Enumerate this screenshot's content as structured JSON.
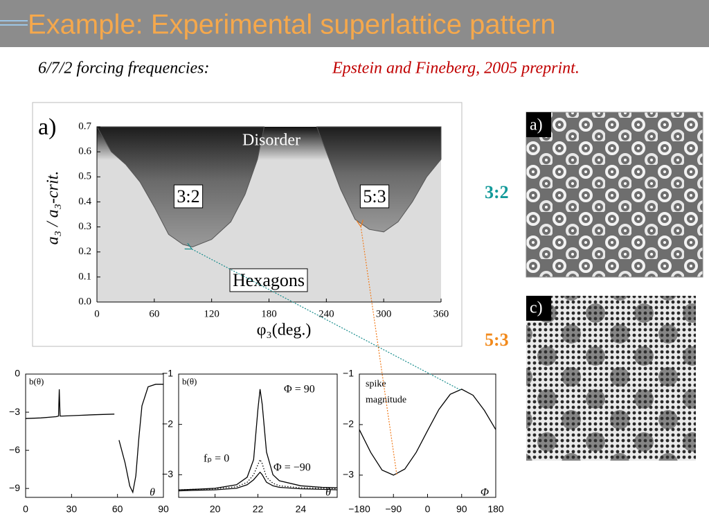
{
  "title": "Example: Experimental superlattice pattern",
  "subtitle": "6/7/2 forcing frequencies:",
  "citation": "Epstein and Fineberg, 2005 preprint.",
  "images": [
    {
      "label": "a)",
      "ratio": "3:2"
    },
    {
      "label": "c)",
      "ratio": "5:3"
    }
  ],
  "chart_data": [
    {
      "type": "area",
      "panel": "a)",
      "ylabel": "a₃ / a₃-crit.",
      "xlabel": "φ₃(deg.)",
      "annotations": [
        "Disorder",
        "3:2",
        "5:3",
        "Hexagons"
      ],
      "xlim": [
        0,
        360
      ],
      "xticks": [
        0,
        60,
        120,
        180,
        240,
        300,
        360
      ],
      "ylim": [
        0,
        0.7
      ],
      "yticks": [
        {
          "value": 0,
          "label": "0.0"
        },
        0.1,
        0.2,
        0.3,
        0.4,
        0.5,
        0.6,
        0.7
      ],
      "series": [
        {
          "color": "#555555",
          "x": [
            0,
            15,
            30,
            45,
            60,
            75,
            90,
            100,
            120,
            140,
            155,
            168,
            175
          ],
          "values": [
            0.7,
            0.6,
            0.55,
            0.48,
            0.38,
            0.27,
            0.23,
            0.22,
            0.25,
            0.32,
            0.43,
            0.57,
            0.7
          ]
        },
        {
          "color": "#555555",
          "x": [
            230,
            240,
            255,
            270,
            285,
            300,
            315,
            330,
            345,
            360
          ],
          "values": [
            0.7,
            0.6,
            0.45,
            0.33,
            0.29,
            0.28,
            0.32,
            0.4,
            0.5,
            0.57
          ]
        }
      ]
    },
    {
      "type": "line",
      "annotations": [
        "b(θ)"
      ],
      "xlabel": "θ",
      "xlim": [
        0,
        90
      ],
      "xticks": [
        0,
        30,
        60,
        90
      ],
      "ylim": [
        -9.7,
        0
      ],
      "yticks": [
        0,
        {
          "value": -3,
          "label": "−3"
        },
        {
          "value": -6,
          "label": "−6"
        },
        {
          "value": -9,
          "label": "−9"
        }
      ],
      "series": [
        {
          "color": "#000000",
          "x": [
            0,
            10,
            20,
            21.5,
            22,
            22.5,
            24,
            35,
            45,
            58,
            null,
            61,
            65,
            68,
            70,
            72,
            74,
            76,
            80,
            85,
            90
          ],
          "values": [
            -3.5,
            -3.45,
            -3.35,
            -3.3,
            -1.2,
            -3.3,
            -3.3,
            -3.25,
            -3.2,
            -3.15,
            null,
            -5.2,
            -7,
            -8.8,
            -9.3,
            -8,
            -5,
            -2.5,
            -1,
            -0.8,
            -0.8
          ]
        }
      ]
    },
    {
      "type": "line",
      "annotations": [
        "b(θ)"
      ],
      "xlabel": "θ",
      "xlim": [
        18.3,
        25.7
      ],
      "xticks": [
        20,
        22,
        24
      ],
      "ylim": [
        -3.45,
        -1
      ],
      "yticks": [
        {
          "value": -1,
          "label": "−1"
        },
        {
          "value": -2,
          "label": "−2"
        },
        {
          "value": -3,
          "label": "−3"
        }
      ],
      "series": [
        {
          "name": "Φ = 90",
          "color": "#000000",
          "style": "solid",
          "x": [
            18.3,
            19,
            20,
            21,
            21.5,
            21.8,
            22,
            22.1,
            22.2,
            22.4,
            22.7,
            23,
            24,
            25,
            25.7
          ],
          "values": [
            -3.3,
            -3.29,
            -3.27,
            -3.2,
            -3.05,
            -2.7,
            -1.7,
            -1.3,
            -1.6,
            -2.55,
            -3.0,
            -3.12,
            -3.22,
            -3.25,
            -3.26
          ]
        },
        {
          "name": "fₚ = 0",
          "color": "#000000",
          "style": "dotted",
          "x": [
            18.3,
            19,
            20,
            21,
            21.5,
            21.8,
            22,
            22.1,
            22.2,
            22.4,
            22.7,
            23,
            24,
            25,
            25.7
          ],
          "values": [
            -3.3,
            -3.29,
            -3.28,
            -3.24,
            -3.15,
            -3.0,
            -2.8,
            -2.7,
            -2.78,
            -3.05,
            -3.17,
            -3.22,
            -3.26,
            -3.27,
            -3.28
          ]
        },
        {
          "name": "Φ = −90",
          "color": "#000000",
          "style": "solid",
          "x": [
            18.3,
            19,
            20,
            21,
            21.5,
            21.8,
            22,
            22.1,
            22.2,
            22.4,
            22.7,
            23,
            24,
            25,
            25.7
          ],
          "values": [
            -3.32,
            -3.31,
            -3.3,
            -3.27,
            -3.2,
            -3.1,
            -3.0,
            -2.95,
            -3.0,
            -3.15,
            -3.22,
            -3.25,
            -3.28,
            -3.29,
            -3.3
          ]
        }
      ]
    },
    {
      "type": "line",
      "annotations": [
        "spike",
        "magnitude"
      ],
      "xlabel": "Φ",
      "xlim": [
        -180,
        180
      ],
      "xticks": [
        {
          "value": -180,
          "label": "−180"
        },
        {
          "value": -90,
          "label": "−90"
        },
        0,
        90,
        180
      ],
      "ylim": [
        -3.44,
        -1
      ],
      "yticks": [
        {
          "value": -1,
          "label": "−1"
        },
        {
          "value": -2,
          "label": "−2"
        },
        {
          "value": -3,
          "label": "−3"
        }
      ],
      "series": [
        {
          "color": "#000000",
          "x": [
            -180,
            -150,
            -120,
            -90,
            -60,
            -30,
            0,
            30,
            60,
            90,
            120,
            150,
            180
          ],
          "values": [
            -2.1,
            -2.55,
            -2.9,
            -3.0,
            -2.88,
            -2.55,
            -2.12,
            -1.7,
            -1.4,
            -1.3,
            -1.42,
            -1.72,
            -2.1
          ]
        }
      ]
    }
  ]
}
